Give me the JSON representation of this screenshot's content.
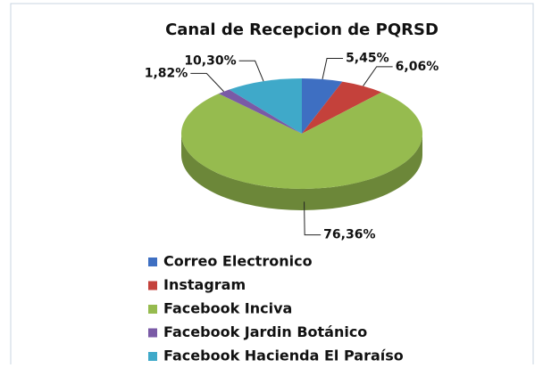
{
  "chart_data": {
    "type": "pie3d",
    "title": "Canal de Recepcion de PQRSD",
    "categories": [
      "Correo Electronico",
      "Instagram",
      "Facebook Inciva",
      "Facebook Jardin Botánico",
      "Facebook Hacienda El Paraíso"
    ],
    "values": [
      5.45,
      6.06,
      76.36,
      1.82,
      10.3
    ],
    "value_labels": [
      "5,45%",
      "6,06%",
      "76,36%",
      "1,82%",
      "10,30%"
    ],
    "colors": [
      "#3e6fc2",
      "#c4413b",
      "#96bb4f",
      "#7a5aa6",
      "#3fa9c9"
    ],
    "legend": "bottom"
  }
}
